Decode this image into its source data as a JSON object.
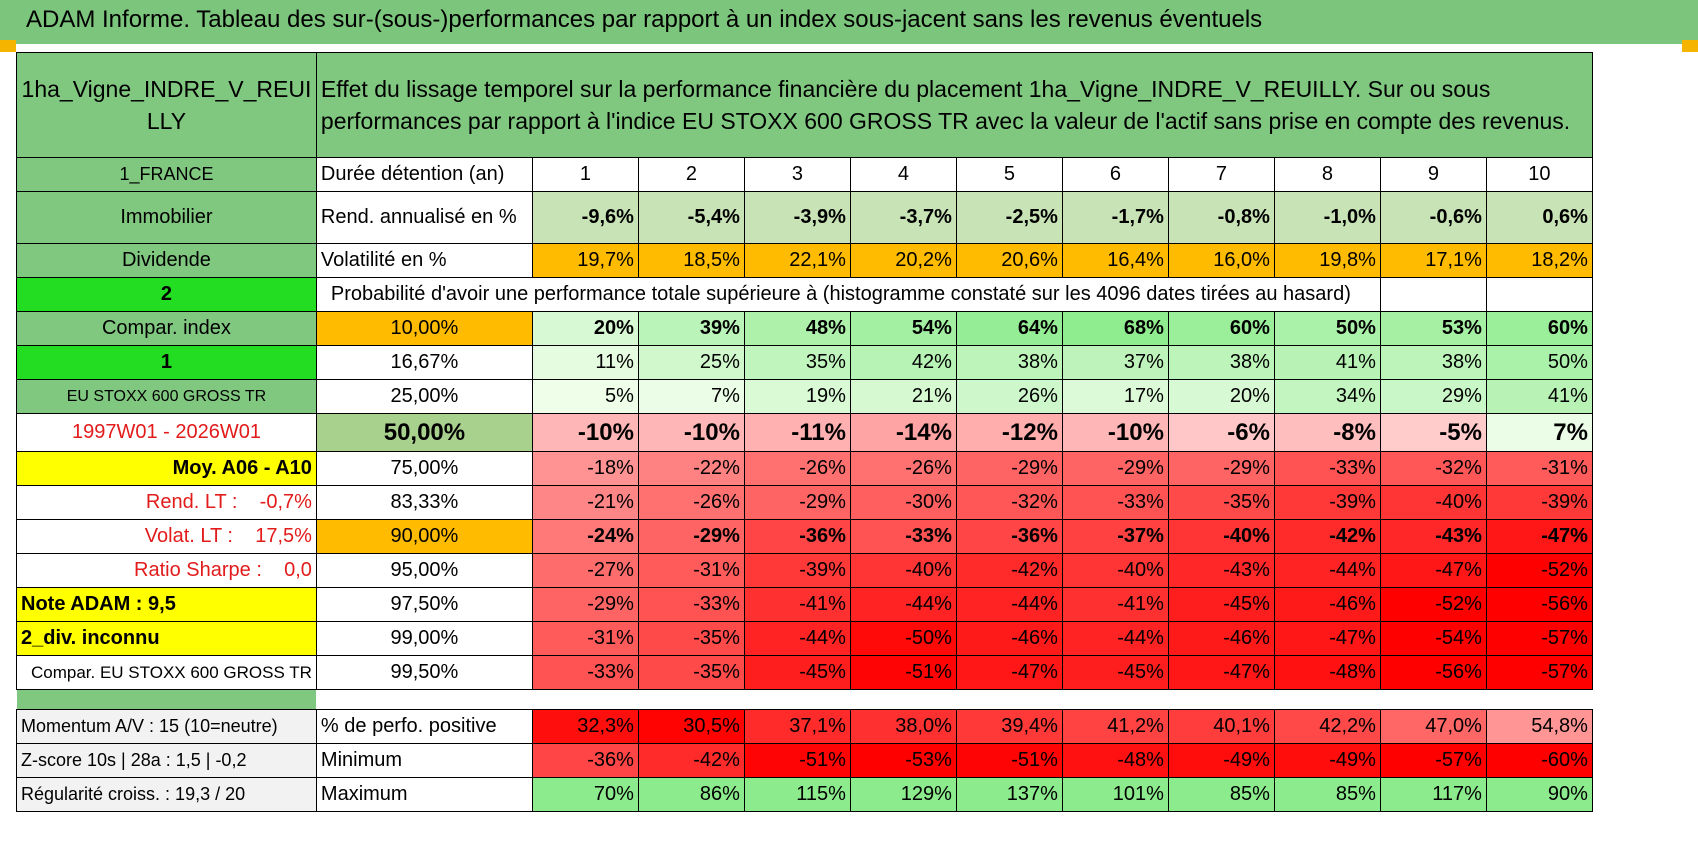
{
  "title": "ADAM Informe. Tableau des sur-(sous-)performances par rapport à un index sous-jacent sans les revenus éventuels",
  "asset_name": "1ha_Vigne_INDRE_V_REUILLY",
  "description": "Effet du lissage temporel sur la performance financière du placement 1ha_Vigne_INDRE_V_REUILLY. Sur ou sous performances par rapport à l'indice EU STOXX 600 GROSS TR avec la valeur de l'actif sans prise en compte des revenus.",
  "side": {
    "country": "1_FRANCE",
    "category": "Immobilier",
    "type": "Dividende",
    "count2": "2",
    "compar_index": "Compar. index",
    "count1": "1",
    "index_name": "EU STOXX 600 GROSS TR",
    "period": "1997W01 - 2026W01",
    "moy": "Moy. A06 - A10",
    "rend_lt": "Rend. LT :    -0,7%",
    "volat_lt": "Volat. LT :    17,5%",
    "sharpe": "Ratio Sharpe :    0,0",
    "note": "Note ADAM : 9,5",
    "div": "2_div. inconnu",
    "compar_full": "Compar. EU STOXX 600 GROSS TR"
  },
  "labels": {
    "holding": "Durée détention (an)",
    "rend": "Rend. annualisé en %",
    "vol": "Volatilité en %",
    "proba": "Probabilité d'avoir une performance totale supérieure à (histogramme constaté sur les 4096 dates tirées au hasard)"
  },
  "years": [
    "1",
    "2",
    "3",
    "4",
    "5",
    "6",
    "7",
    "8",
    "9",
    "10"
  ],
  "rend": [
    "-9,6%",
    "-5,4%",
    "-3,9%",
    "-3,7%",
    "-2,5%",
    "-1,7%",
    "-0,8%",
    "-1,0%",
    "-0,6%",
    "0,6%"
  ],
  "vol": [
    "19,7%",
    "18,5%",
    "22,1%",
    "20,2%",
    "20,6%",
    "16,4%",
    "16,0%",
    "19,8%",
    "17,1%",
    "18,2%"
  ],
  "quantiles": [
    {
      "q": "10,00%",
      "v": [
        "20%",
        "39%",
        "48%",
        "54%",
        "64%",
        "68%",
        "60%",
        "50%",
        "53%",
        "60%"
      ]
    },
    {
      "q": "16,67%",
      "v": [
        "11%",
        "25%",
        "35%",
        "42%",
        "38%",
        "37%",
        "38%",
        "41%",
        "38%",
        "50%"
      ]
    },
    {
      "q": "25,00%",
      "v": [
        "5%",
        "7%",
        "19%",
        "21%",
        "26%",
        "17%",
        "20%",
        "34%",
        "29%",
        "41%"
      ]
    },
    {
      "q": "50,00%",
      "v": [
        "-10%",
        "-10%",
        "-11%",
        "-14%",
        "-12%",
        "-10%",
        "-6%",
        "-8%",
        "-5%",
        "7%"
      ]
    },
    {
      "q": "75,00%",
      "v": [
        "-18%",
        "-22%",
        "-26%",
        "-26%",
        "-29%",
        "-29%",
        "-29%",
        "-33%",
        "-32%",
        "-31%"
      ]
    },
    {
      "q": "83,33%",
      "v": [
        "-21%",
        "-26%",
        "-29%",
        "-30%",
        "-32%",
        "-33%",
        "-35%",
        "-39%",
        "-40%",
        "-39%"
      ]
    },
    {
      "q": "90,00%",
      "v": [
        "-24%",
        "-29%",
        "-36%",
        "-33%",
        "-36%",
        "-37%",
        "-40%",
        "-42%",
        "-43%",
        "-47%"
      ]
    },
    {
      "q": "95,00%",
      "v": [
        "-27%",
        "-31%",
        "-39%",
        "-40%",
        "-42%",
        "-40%",
        "-43%",
        "-44%",
        "-47%",
        "-52%"
      ]
    },
    {
      "q": "97,50%",
      "v": [
        "-29%",
        "-33%",
        "-41%",
        "-44%",
        "-44%",
        "-41%",
        "-45%",
        "-46%",
        "-52%",
        "-56%"
      ]
    },
    {
      "q": "99,00%",
      "v": [
        "-31%",
        "-35%",
        "-44%",
        "-50%",
        "-46%",
        "-44%",
        "-46%",
        "-47%",
        "-54%",
        "-57%"
      ]
    },
    {
      "q": "99,50%",
      "v": [
        "-33%",
        "-35%",
        "-45%",
        "-51%",
        "-47%",
        "-45%",
        "-47%",
        "-48%",
        "-56%",
        "-57%"
      ]
    }
  ],
  "bottom": [
    {
      "side": "Momentum A/V : 15 (10=neutre)",
      "label": "% de perfo. positive",
      "v": [
        "32,3%",
        "30,5%",
        "37,1%",
        "38,0%",
        "39,4%",
        "41,2%",
        "40,1%",
        "42,2%",
        "47,0%",
        "54,8%"
      ]
    },
    {
      "side": "Z-score 10s | 28a : 1,5 | -0,2",
      "label": "Minimum",
      "v": [
        "-36%",
        "-42%",
        "-51%",
        "-53%",
        "-51%",
        "-48%",
        "-49%",
        "-49%",
        "-57%",
        "-60%"
      ]
    },
    {
      "side": "Régularité croiss. : 19,3 / 20",
      "label": "Maximum",
      "v": [
        "70%",
        "86%",
        "115%",
        "129%",
        "137%",
        "101%",
        "85%",
        "85%",
        "117%",
        "90%"
      ]
    }
  ],
  "colors": {
    "title_bg": "#7cc57c",
    "green_label": "#80c880",
    "bright_green": "#22dd22",
    "yellow": "#ffff00",
    "orange": "#ffbb00",
    "red_text": "#e21b1b"
  }
}
